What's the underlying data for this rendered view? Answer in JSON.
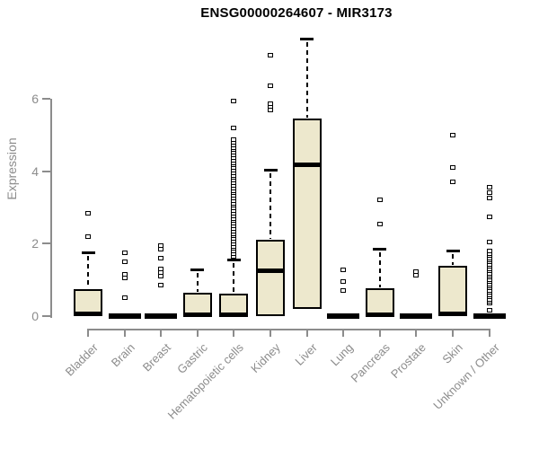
{
  "figure": {
    "colors": {
      "box_fill": "#EDE8CD",
      "stroke": "#000000",
      "axis": "#8C8C8C",
      "title": "#000000",
      "background": "#FFFFFF"
    }
  },
  "chart_data": {
    "type": "boxplot",
    "title": "ENSG00000264607 - MIR3173",
    "xlabel": "",
    "ylabel": "Expression",
    "ylim": [
      0,
      7.8
    ],
    "yticks": [
      0,
      2,
      4,
      6
    ],
    "grid": false,
    "legend": null,
    "categories": [
      "Bladder",
      "Brain",
      "Breast",
      "Gastric",
      "Hematopoietic cells",
      "Kidney",
      "Liver",
      "Lung",
      "Pancreas",
      "Prostate",
      "Skin",
      "Unknown / Other"
    ],
    "boxes": [
      {
        "label": "Bladder",
        "collapsed": false,
        "q1": 0,
        "median": 0.05,
        "q3": 0.75,
        "whisker_low": 0,
        "whisker_high": 1.75,
        "outliers": [
          2.2,
          2.85
        ]
      },
      {
        "label": "Brain",
        "collapsed": true,
        "q1": 0,
        "median": 0,
        "q3": 0,
        "whisker_low": 0,
        "whisker_high": 0,
        "outliers": [
          0.5,
          1.05,
          1.15,
          1.5,
          1.75
        ]
      },
      {
        "label": "Breast",
        "collapsed": true,
        "q1": 0,
        "median": 0,
        "q3": 0,
        "whisker_low": 0,
        "whisker_high": 0,
        "outliers": [
          0.85,
          1.1,
          1.2,
          1.3,
          1.6,
          1.85,
          1.95
        ]
      },
      {
        "label": "Gastric",
        "collapsed": false,
        "q1": 0,
        "median": 0.04,
        "q3": 0.65,
        "whisker_low": 0,
        "whisker_high": 1.3,
        "outliers": []
      },
      {
        "label": "Hematopoietic cells",
        "collapsed": false,
        "q1": 0,
        "median": 0.04,
        "q3": 0.62,
        "whisker_low": 0,
        "whisker_high": 1.55,
        "outliers": [
          1.65,
          1.72,
          1.79,
          1.86,
          1.93,
          2.0,
          2.07,
          2.14,
          2.21,
          2.28,
          2.35,
          2.42,
          2.49,
          2.56,
          2.63,
          2.7,
          2.77,
          2.84,
          2.91,
          2.98,
          3.05,
          3.12,
          3.19,
          3.26,
          3.33,
          3.4,
          3.47,
          3.54,
          3.61,
          3.68,
          3.75,
          3.82,
          3.89,
          3.96,
          4.03,
          4.1,
          4.17,
          4.24,
          4.31,
          4.38,
          4.45,
          4.52,
          4.59,
          4.66,
          4.73,
          4.8,
          4.87,
          5.2,
          5.95
        ]
      },
      {
        "label": "Kidney",
        "collapsed": false,
        "q1": 0,
        "median": 1.25,
        "q3": 2.1,
        "whisker_low": 0,
        "whisker_high": 4.05,
        "outliers": [
          5.7,
          5.78,
          5.86,
          6.35,
          7.2
        ]
      },
      {
        "label": "Liver",
        "collapsed": false,
        "q1": 0.2,
        "median": 4.18,
        "q3": 5.45,
        "whisker_low": 0.2,
        "whisker_high": 7.65,
        "outliers": []
      },
      {
        "label": "Lung",
        "collapsed": true,
        "q1": 0,
        "median": 0,
        "q3": 0,
        "whisker_low": 0,
        "whisker_high": 0,
        "outliers": [
          0.7,
          0.95,
          1.27
        ]
      },
      {
        "label": "Pancreas",
        "collapsed": false,
        "q1": 0,
        "median": 0.04,
        "q3": 0.78,
        "whisker_low": 0,
        "whisker_high": 1.85,
        "outliers": [
          2.55,
          3.2
        ]
      },
      {
        "label": "Prostate",
        "collapsed": true,
        "q1": 0,
        "median": 0,
        "q3": 0,
        "whisker_low": 0,
        "whisker_high": 0,
        "outliers": [
          1.12,
          1.22
        ]
      },
      {
        "label": "Skin",
        "collapsed": false,
        "q1": 0,
        "median": 0.05,
        "q3": 1.4,
        "whisker_low": 0,
        "whisker_high": 1.82,
        "outliers": [
          3.7,
          4.1,
          5.0
        ]
      },
      {
        "label": "Unknown / Other",
        "collapsed": true,
        "q1": 0,
        "median": 0,
        "q3": 0,
        "whisker_low": 0,
        "whisker_high": 0,
        "outliers": [
          0.15,
          0.35,
          0.41,
          0.47,
          0.53,
          0.59,
          0.65,
          0.71,
          0.77,
          0.83,
          0.89,
          0.95,
          1.01,
          1.07,
          1.13,
          1.19,
          1.25,
          1.31,
          1.37,
          1.43,
          1.49,
          1.55,
          1.61,
          1.67,
          1.73,
          1.79,
          2.05,
          2.75,
          3.25,
          3.4,
          3.55
        ]
      }
    ]
  }
}
